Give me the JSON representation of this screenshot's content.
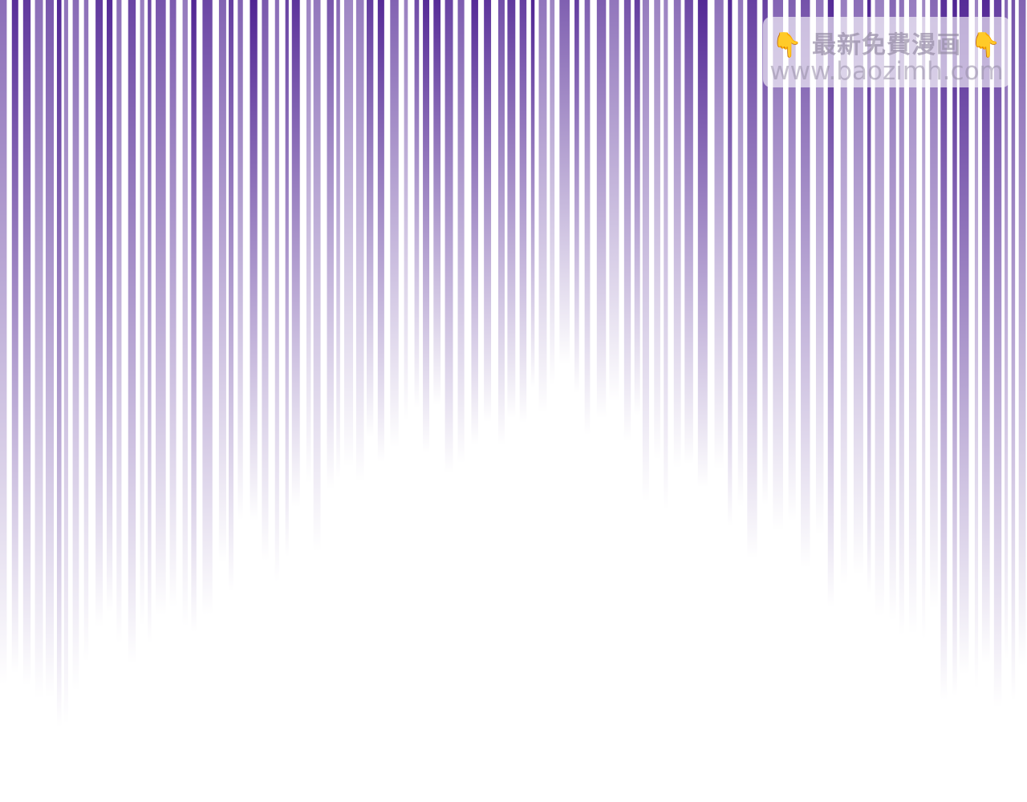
{
  "panel": {
    "background": "#ffffff",
    "speed_line_color": "#4f2393",
    "effect": "vertical speed lines fading downward"
  },
  "watermark": {
    "line1": "最新免費漫画",
    "line2": "www.baozimh.com",
    "icon": "pointing-down-hand-icon"
  }
}
